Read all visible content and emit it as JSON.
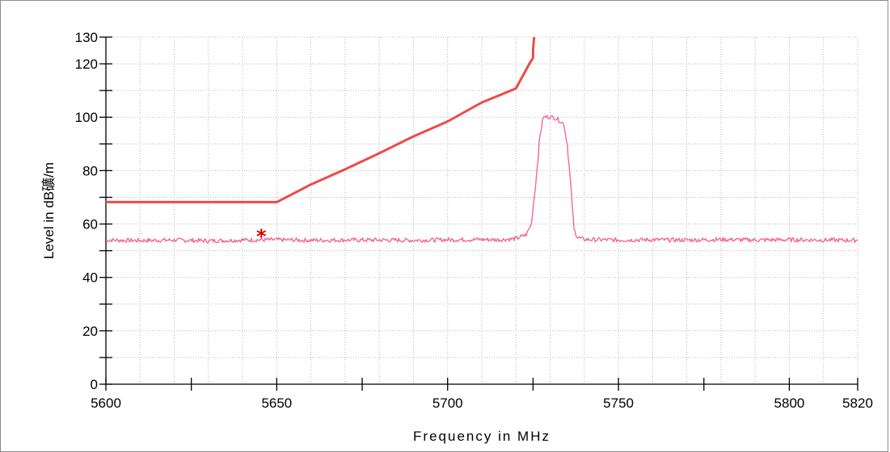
{
  "chart_data": {
    "type": "line",
    "xlabel": "Frequency in MHz",
    "ylabel": "Level in dB礦/m",
    "xlim": [
      5600,
      5820
    ],
    "ylim": [
      0,
      130
    ],
    "x_ticks": [
      5600,
      5650,
      5700,
      5750,
      5800,
      5820
    ],
    "x_tick_labels": [
      "5600",
      "5650",
      "5700",
      "5750",
      "5800",
      "5820"
    ],
    "y_ticks": [
      0,
      20,
      40,
      60,
      80,
      100,
      120,
      130
    ],
    "y_tick_labels": [
      "0",
      "20",
      "40",
      "60",
      "80",
      "100",
      "120",
      "130"
    ],
    "grid": true,
    "colors": {
      "limit": "#ee4a4a",
      "trace": "#f06a96",
      "marker": "#e00000"
    },
    "series": [
      {
        "role": "limit",
        "x": [
          5600,
          5650,
          5660,
          5670,
          5680,
          5690,
          5700,
          5710,
          5720,
          5724,
          5725,
          5725,
          5725.3
        ],
        "y": [
          68.2,
          68.2,
          74.8,
          80.5,
          86.5,
          92.8,
          98.4,
          105.5,
          110.8,
          120.2,
          122.2,
          125,
          130
        ]
      },
      {
        "role": "measurement",
        "x": [
          5600,
          5610,
          5620,
          5630,
          5640,
          5650,
          5660,
          5670,
          5680,
          5690,
          5700,
          5710,
          5715,
          5720,
          5723,
          5724.5,
          5726,
          5727,
          5728,
          5730,
          5732,
          5734,
          5735,
          5736,
          5737,
          5738,
          5740,
          5750,
          5760,
          5770,
          5780,
          5790,
          5800,
          5810,
          5820
        ],
        "y": [
          54,
          53.8,
          54,
          53.7,
          54,
          54.1,
          53.9,
          54,
          54,
          53.9,
          54.1,
          54.2,
          54.1,
          54.5,
          56,
          60,
          78,
          93,
          100,
          100.2,
          99.5,
          97.5,
          90,
          75,
          58,
          55,
          54.2,
          54,
          54.1,
          54,
          54.2,
          54,
          54.1,
          54,
          53.9
        ]
      }
    ],
    "markers": [
      {
        "x": 5645.5,
        "y": 56.2,
        "symbol": "*"
      }
    ]
  }
}
